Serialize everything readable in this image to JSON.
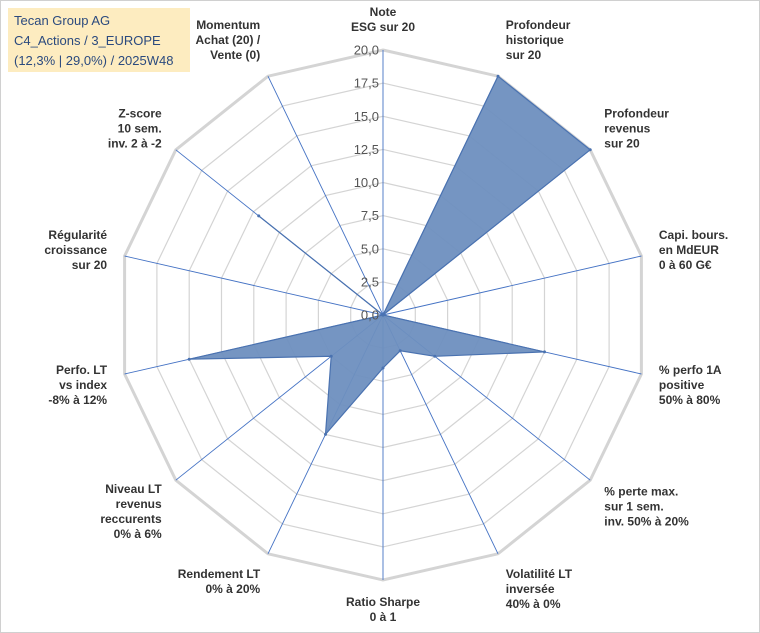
{
  "header": {
    "company": "Tecan Group AG",
    "portfolio": "C4_Actions / 3_EUROPE",
    "stats": "(12,3% | 29,0%) / 2025W48"
  },
  "colors": {
    "fill": "#6e8fbf",
    "stroke": "#4a72b0",
    "ring": "#d4d4d4",
    "spoke": "#4472c4",
    "info_bg": "#fdecc0",
    "info_text": "#2b4a7e"
  },
  "chart_data": {
    "type": "radar",
    "rmin": 0,
    "rmax": 20,
    "ticks": [
      "0,0",
      "2,5",
      "5,0",
      "7,5",
      "10,0",
      "12,5",
      "15,0",
      "17,5",
      "20,0"
    ],
    "axes": [
      {
        "lines": [
          "Note",
          "ESG sur 20"
        ]
      },
      {
        "lines": [
          "Profondeur",
          "historique",
          "sur 20"
        ]
      },
      {
        "lines": [
          "Profondeur",
          "revenus",
          "sur 20"
        ]
      },
      {
        "lines": [
          "Capi. bours.",
          "en MdEUR",
          "0 à 60 G€"
        ]
      },
      {
        "lines": [
          "% perfo 1A",
          "positive",
          "50% à 80%"
        ]
      },
      {
        "lines": [
          "% perte max.",
          "sur 1 sem.",
          "inv. 50% à 20%"
        ]
      },
      {
        "lines": [
          "Volatilité LT",
          "inversée",
          "40% à 0%"
        ]
      },
      {
        "lines": [
          "Ratio Sharpe",
          "0 à 1"
        ]
      },
      {
        "lines": [
          "Rendement LT",
          "0% à 20%"
        ]
      },
      {
        "lines": [
          "Niveau LT",
          "revenus",
          "reccurents",
          "0% à 6%"
        ]
      },
      {
        "lines": [
          "Perfo. LT",
          "vs index",
          "-8% à 12%"
        ]
      },
      {
        "lines": [
          "Régularité",
          "croissance",
          "sur 20"
        ]
      },
      {
        "lines": [
          "Z-score",
          "10 sem.",
          "inv. 2 à -2"
        ]
      },
      {
        "lines": [
          "Momentum",
          "Achat (20) /",
          "Vente (0)"
        ]
      }
    ],
    "series": [
      {
        "values": [
          0,
          20,
          20,
          0,
          12.5,
          5,
          3,
          4,
          10,
          5,
          15,
          0,
          12,
          0
        ]
      }
    ]
  }
}
